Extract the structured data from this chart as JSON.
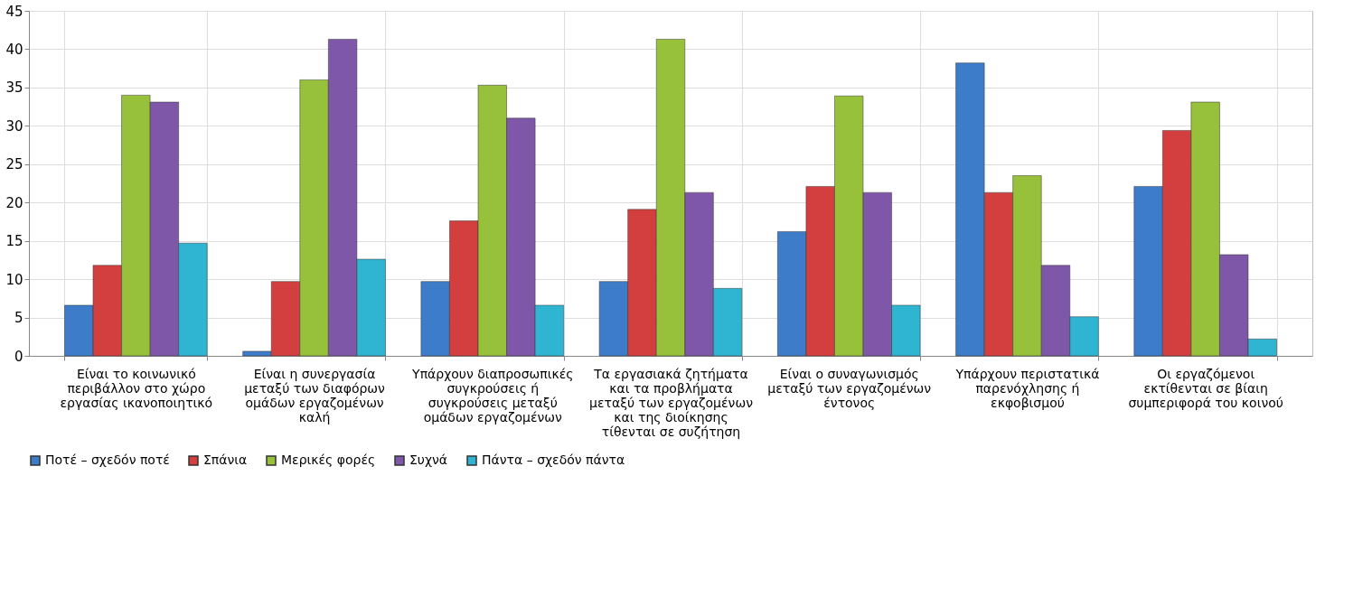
{
  "chart_data": {
    "type": "bar",
    "categories": [
      "Είναι το κοινωνικό περιβάλλον στο χώρο εργασίας ικανοποιητικό",
      "Είναι η συνεργασία μεταξύ των διαφόρων ομάδων εργαζομένων καλή",
      "Υπάρχουν διαπροσωπικές συγκρούσεις ή συγκρούσεις μεταξύ ομάδων εργαζομένων",
      "Τα εργασιακά ζητήματα και τα προβλήματα μεταξύ των εργαζομένων και της διοίκησης τίθενται σε συζήτηση",
      "Είναι ο συναγωνισμός μεταξύ των εργαζομένων έντονος",
      "Υπάρχουν περιστατικά παρενόχλησης ή εκφοβισμού",
      "Οι εργαζόμενοι εκτίθενται σε βίαιη συμπεριφορά του κοινού"
    ],
    "series": [
      {
        "name": "Ποτέ – σχεδόν ποτέ",
        "color": "#3d7cc9",
        "values": [
          6.6,
          0.6,
          9.7,
          9.7,
          16.2,
          38.2,
          22.1
        ]
      },
      {
        "name": "Σπάνια",
        "color": "#d33f3f",
        "values": [
          11.8,
          9.7,
          17.6,
          19.1,
          22.1,
          21.3,
          29.4
        ]
      },
      {
        "name": "Μερικές φορές",
        "color": "#97c13a",
        "values": [
          34,
          36,
          35.3,
          41.3,
          33.9,
          23.5,
          33.1
        ]
      },
      {
        "name": "Συχνά",
        "color": "#7f57a8",
        "values": [
          33.1,
          41.3,
          31,
          21.3,
          21.3,
          11.8,
          13.2
        ]
      },
      {
        "name": "Πάντα – σχεδόν πάντα",
        "color": "#2fb5d2",
        "values": [
          14.7,
          12.6,
          6.6,
          8.8,
          6.6,
          5.1,
          2.2
        ]
      }
    ],
    "ylim": [
      0,
      45
    ],
    "yticks": [
      0,
      5,
      10,
      15,
      20,
      25,
      30,
      35,
      40,
      45
    ],
    "grid": true,
    "legend": "bottom"
  }
}
